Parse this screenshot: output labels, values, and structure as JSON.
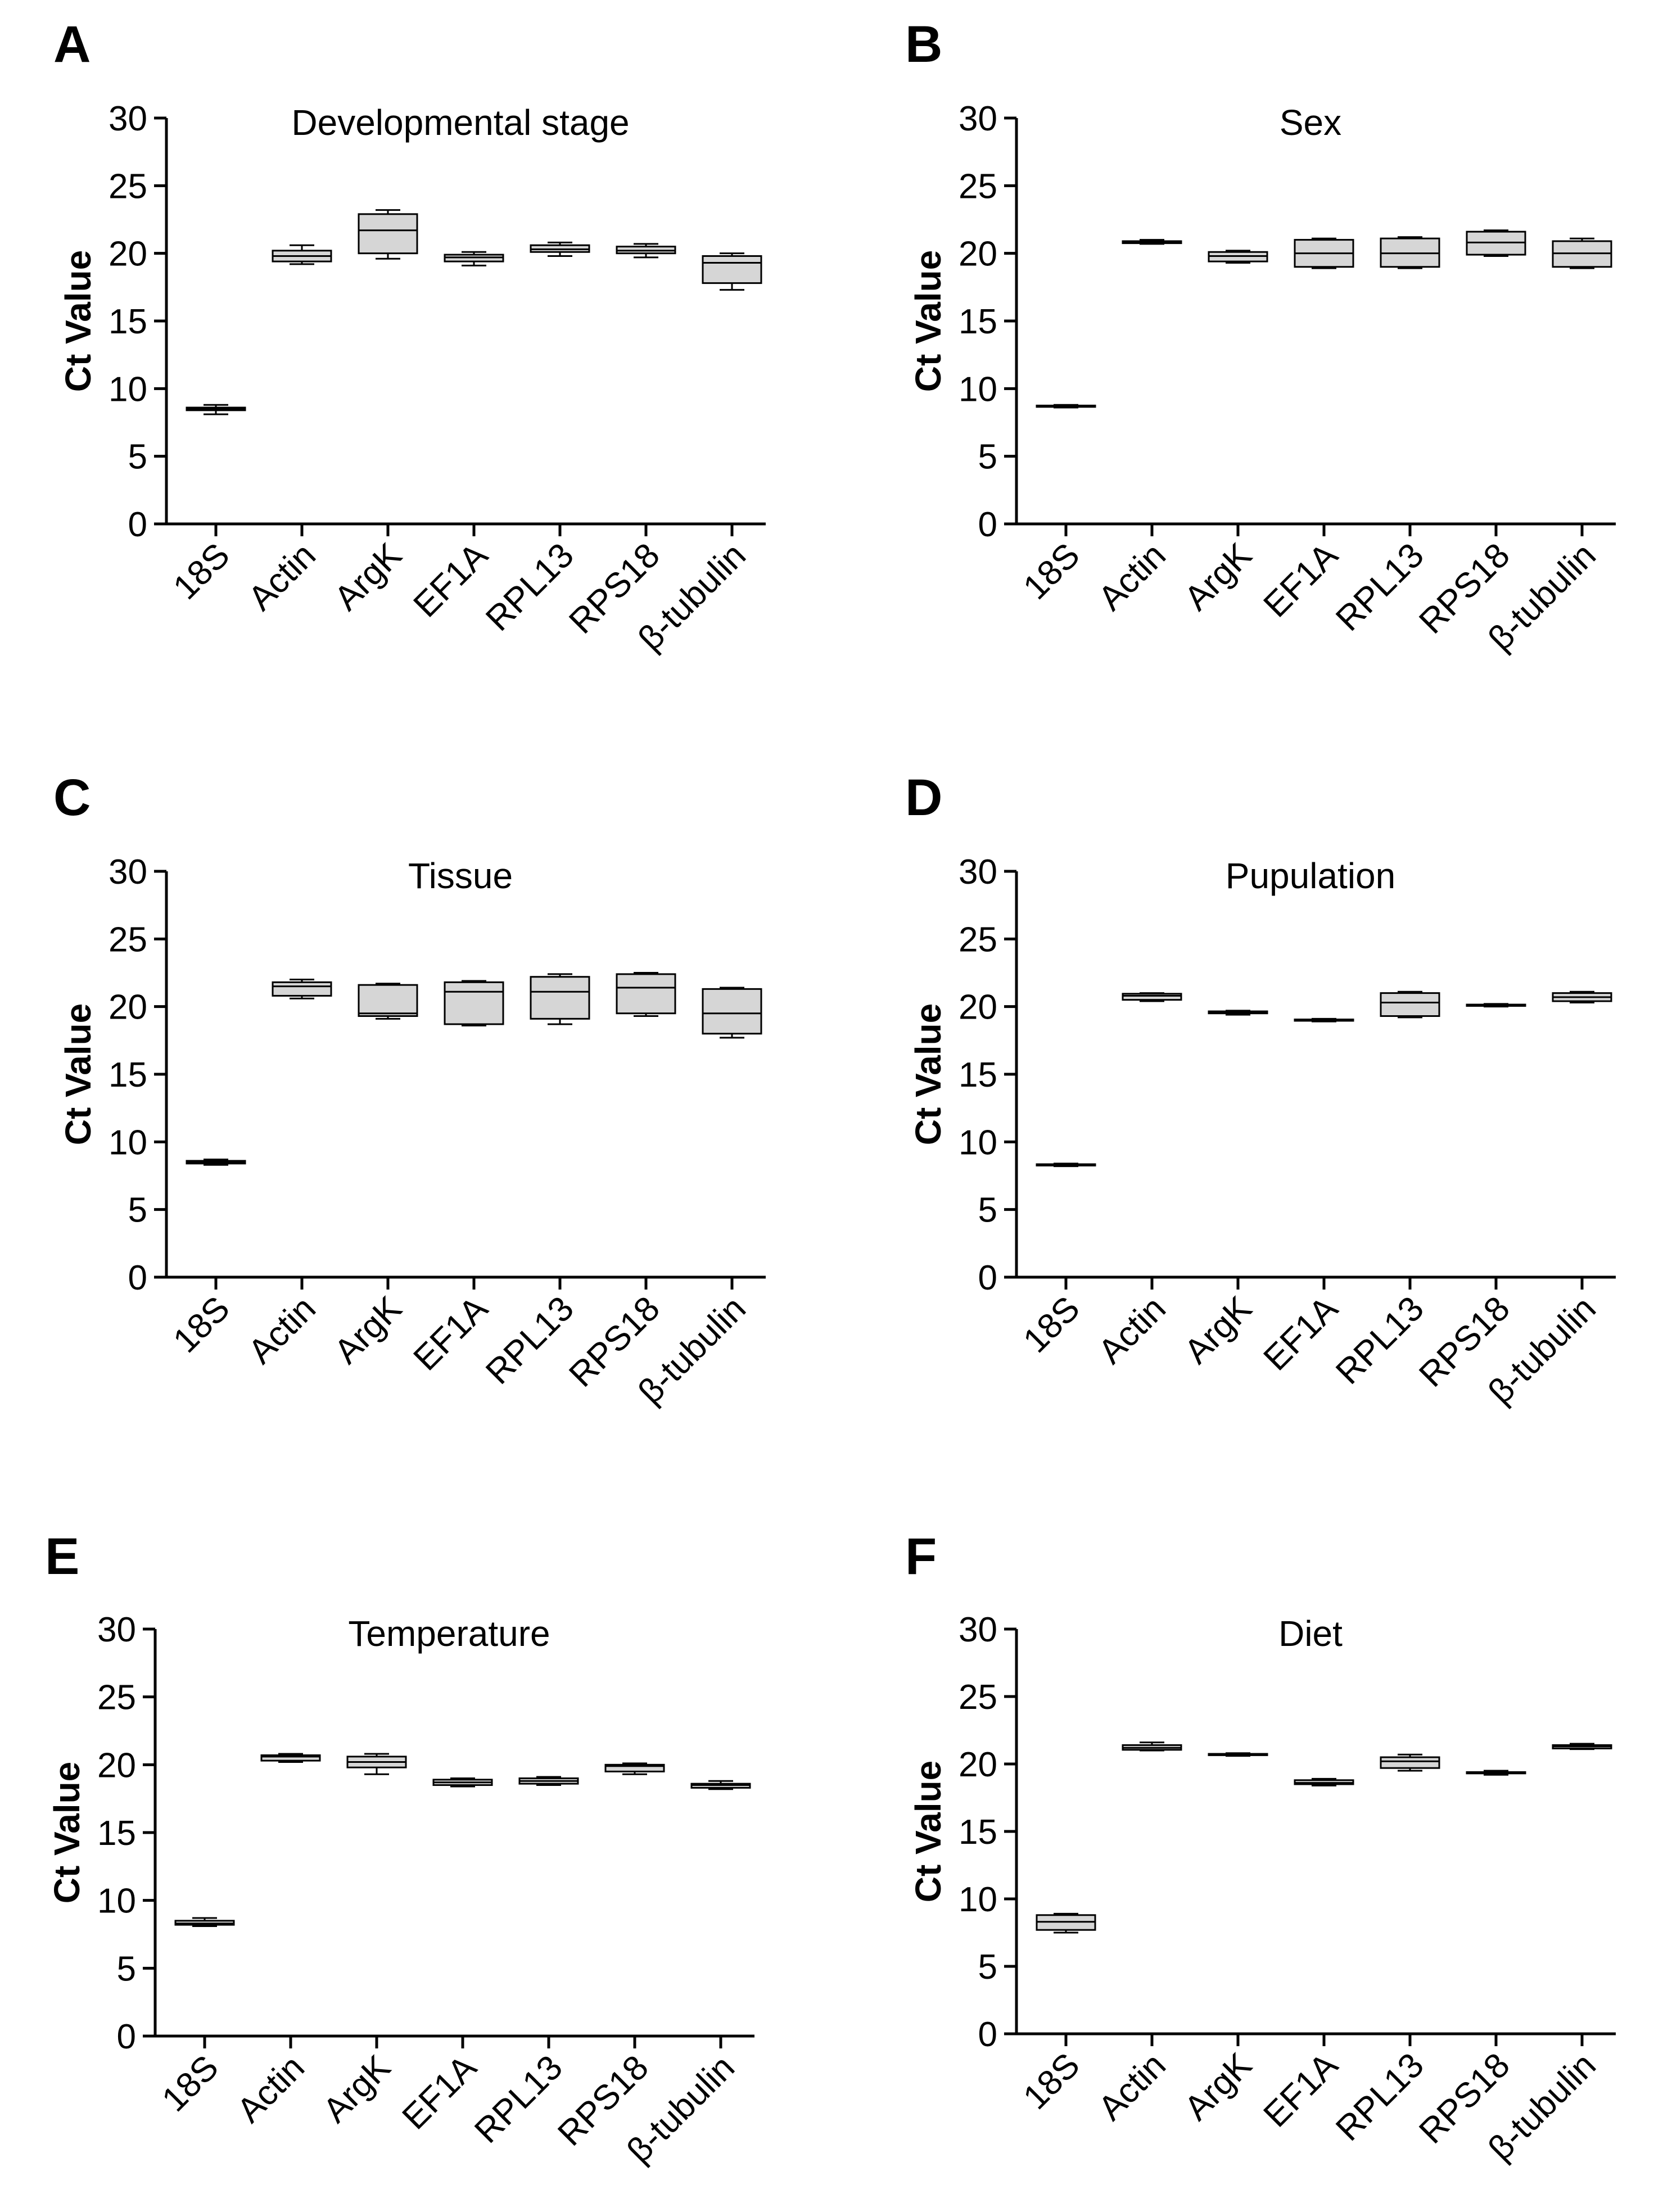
{
  "chart_data": [
    {
      "panel": "A",
      "type": "box",
      "title": "Developmental stage",
      "ylabel": "Ct Value",
      "ylim": [
        0,
        30
      ],
      "yticks": [
        0,
        5,
        10,
        15,
        20,
        25,
        30
      ],
      "categories": [
        "18S",
        "Actin",
        "ArgK",
        "EF1A",
        "RPL13",
        "RPS18",
        "β-tubulin"
      ],
      "boxes": [
        {
          "min": 8.1,
          "q1": 8.4,
          "median": 8.5,
          "q3": 8.6,
          "max": 8.8
        },
        {
          "min": 19.2,
          "q1": 19.4,
          "median": 19.8,
          "q3": 20.2,
          "max": 20.6
        },
        {
          "min": 19.6,
          "q1": 20.0,
          "median": 21.7,
          "q3": 22.9,
          "max": 23.2
        },
        {
          "min": 19.1,
          "q1": 19.4,
          "median": 19.7,
          "q3": 19.9,
          "max": 20.1
        },
        {
          "min": 19.8,
          "q1": 20.1,
          "median": 20.3,
          "q3": 20.6,
          "max": 20.8
        },
        {
          "min": 19.7,
          "q1": 20.0,
          "median": 20.2,
          "q3": 20.5,
          "max": 20.7
        },
        {
          "min": 17.3,
          "q1": 17.8,
          "median": 19.3,
          "q3": 19.8,
          "max": 20.0
        }
      ]
    },
    {
      "panel": "B",
      "type": "box",
      "title": "Sex",
      "ylabel": "Ct Value",
      "ylim": [
        0,
        30
      ],
      "yticks": [
        0,
        5,
        10,
        15,
        20,
        25,
        30
      ],
      "categories": [
        "18S",
        "Actin",
        "ArgK",
        "EF1A",
        "RPL13",
        "RPS18",
        "β-tubulin"
      ],
      "boxes": [
        {
          "min": 8.6,
          "q1": 8.65,
          "median": 8.7,
          "q3": 8.75,
          "max": 8.8
        },
        {
          "min": 20.7,
          "q1": 20.75,
          "median": 20.8,
          "q3": 20.9,
          "max": 21.0
        },
        {
          "min": 19.3,
          "q1": 19.4,
          "median": 19.8,
          "q3": 20.1,
          "max": 20.2
        },
        {
          "min": 18.9,
          "q1": 19.0,
          "median": 20.0,
          "q3": 21.0,
          "max": 21.1
        },
        {
          "min": 18.9,
          "q1": 19.0,
          "median": 20.0,
          "q3": 21.1,
          "max": 21.2
        },
        {
          "min": 19.8,
          "q1": 19.9,
          "median": 20.8,
          "q3": 21.6,
          "max": 21.7
        },
        {
          "min": 18.9,
          "q1": 19.0,
          "median": 20.0,
          "q3": 20.9,
          "max": 21.1
        }
      ]
    },
    {
      "panel": "C",
      "type": "box",
      "title": "Tissue",
      "ylabel": "Ct Value",
      "ylim": [
        0,
        30
      ],
      "yticks": [
        0,
        5,
        10,
        15,
        20,
        25,
        30
      ],
      "categories": [
        "18S",
        "Actin",
        "ArgK",
        "EF1A",
        "RPL13",
        "RPS18",
        "β-tubulin"
      ],
      "boxes": [
        {
          "min": 8.3,
          "q1": 8.4,
          "median": 8.5,
          "q3": 8.6,
          "max": 8.7
        },
        {
          "min": 20.6,
          "q1": 20.8,
          "median": 21.5,
          "q3": 21.8,
          "max": 22.0
        },
        {
          "min": 19.1,
          "q1": 19.3,
          "median": 19.5,
          "q3": 21.6,
          "max": 21.7
        },
        {
          "min": 18.6,
          "q1": 18.7,
          "median": 21.1,
          "q3": 21.8,
          "max": 21.9
        },
        {
          "min": 18.7,
          "q1": 19.1,
          "median": 21.1,
          "q3": 22.2,
          "max": 22.4
        },
        {
          "min": 19.3,
          "q1": 19.5,
          "median": 21.4,
          "q3": 22.4,
          "max": 22.5
        },
        {
          "min": 17.7,
          "q1": 18.0,
          "median": 19.5,
          "q3": 21.3,
          "max": 21.4
        }
      ]
    },
    {
      "panel": "D",
      "type": "box",
      "title": "Pupulation",
      "ylabel": "Ct Value",
      "ylim": [
        0,
        30
      ],
      "yticks": [
        0,
        5,
        10,
        15,
        20,
        25,
        30
      ],
      "categories": [
        "18S",
        "Actin",
        "ArgK",
        "EF1A",
        "RPL13",
        "RPS18",
        "β-tubulin"
      ],
      "boxes": [
        {
          "min": 8.2,
          "q1": 8.25,
          "median": 8.3,
          "q3": 8.35,
          "max": 8.4
        },
        {
          "min": 20.4,
          "q1": 20.5,
          "median": 20.8,
          "q3": 20.95,
          "max": 21.0
        },
        {
          "min": 19.4,
          "q1": 19.5,
          "median": 19.6,
          "q3": 19.65,
          "max": 19.7
        },
        {
          "min": 18.9,
          "q1": 18.95,
          "median": 19.0,
          "q3": 19.05,
          "max": 19.1
        },
        {
          "min": 19.2,
          "q1": 19.3,
          "median": 20.3,
          "q3": 21.0,
          "max": 21.1
        },
        {
          "min": 20.0,
          "q1": 20.05,
          "median": 20.1,
          "q3": 20.15,
          "max": 20.2
        },
        {
          "min": 20.3,
          "q1": 20.4,
          "median": 20.7,
          "q3": 21.0,
          "max": 21.1
        }
      ]
    },
    {
      "panel": "E",
      "type": "box",
      "title": "Temperature",
      "ylabel": "Ct Value",
      "ylim": [
        0,
        30
      ],
      "yticks": [
        0,
        5,
        10,
        15,
        20,
        25,
        30
      ],
      "categories": [
        "18S",
        "Actin",
        "ArgK",
        "EF1A",
        "RPL13",
        "RPS18",
        "β-tubulin"
      ],
      "boxes": [
        {
          "min": 8.1,
          "q1": 8.2,
          "median": 8.3,
          "q3": 8.5,
          "max": 8.7
        },
        {
          "min": 20.2,
          "q1": 20.3,
          "median": 20.6,
          "q3": 20.7,
          "max": 20.8
        },
        {
          "min": 19.3,
          "q1": 19.8,
          "median": 20.2,
          "q3": 20.6,
          "max": 20.8
        },
        {
          "min": 18.4,
          "q1": 18.5,
          "median": 18.7,
          "q3": 18.9,
          "max": 19.0
        },
        {
          "min": 18.5,
          "q1": 18.6,
          "median": 18.8,
          "q3": 19.0,
          "max": 19.1
        },
        {
          "min": 19.3,
          "q1": 19.5,
          "median": 19.9,
          "q3": 20.0,
          "max": 20.1
        },
        {
          "min": 18.2,
          "q1": 18.3,
          "median": 18.5,
          "q3": 18.6,
          "max": 18.8
        }
      ]
    },
    {
      "panel": "F",
      "type": "box",
      "title": "Diet",
      "ylabel": "Ct Value",
      "ylim": [
        0,
        30
      ],
      "yticks": [
        0,
        5,
        10,
        15,
        20,
        25,
        30
      ],
      "categories": [
        "18S",
        "Actin",
        "ArgK",
        "EF1A",
        "RPL13",
        "RPS18",
        "β-tubulin"
      ],
      "boxes": [
        {
          "min": 7.5,
          "q1": 7.7,
          "median": 8.3,
          "q3": 8.8,
          "max": 8.9
        },
        {
          "min": 21.0,
          "q1": 21.05,
          "median": 21.2,
          "q3": 21.4,
          "max": 21.6
        },
        {
          "min": 20.6,
          "q1": 20.65,
          "median": 20.7,
          "q3": 20.75,
          "max": 20.8
        },
        {
          "min": 18.4,
          "q1": 18.5,
          "median": 18.6,
          "q3": 18.8,
          "max": 18.9
        },
        {
          "min": 19.5,
          "q1": 19.7,
          "median": 20.2,
          "q3": 20.5,
          "max": 20.7
        },
        {
          "min": 19.2,
          "q1": 19.3,
          "median": 19.35,
          "q3": 19.4,
          "max": 19.5
        },
        {
          "min": 21.1,
          "q1": 21.15,
          "median": 21.3,
          "q3": 21.4,
          "max": 21.5
        }
      ]
    }
  ]
}
